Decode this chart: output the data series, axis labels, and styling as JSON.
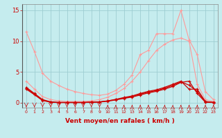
{
  "xlabel": "Vent moyen/en rafales ( km/h )",
  "xlim": [
    -0.5,
    23.5
  ],
  "ylim": [
    -0.8,
    16
  ],
  "yticks": [
    0,
    5,
    10,
    15
  ],
  "xticks": [
    0,
    1,
    2,
    3,
    4,
    5,
    6,
    7,
    8,
    9,
    10,
    11,
    12,
    13,
    14,
    15,
    16,
    17,
    18,
    19,
    20,
    21,
    22,
    23
  ],
  "bg_color": "#c5ecee",
  "grid_color": "#9ecdd2",
  "light_pink": "#ff9999",
  "dark_red": "#cc0000",
  "line_A_x": [
    0,
    1,
    2,
    3,
    4,
    5,
    6,
    7,
    8,
    9,
    10,
    11,
    12,
    13,
    14,
    15,
    16,
    17,
    18,
    19,
    20,
    21,
    22,
    23
  ],
  "line_A_y": [
    11.5,
    8.3,
    4.8,
    3.5,
    2.8,
    2.2,
    1.8,
    1.5,
    1.3,
    1.2,
    1.4,
    2.0,
    3.0,
    4.5,
    7.8,
    8.5,
    11.2,
    11.2,
    11.2,
    15.0,
    10.2,
    7.8,
    1.8,
    0.5
  ],
  "line_B_x": [
    0,
    1,
    2,
    3,
    4,
    5,
    6,
    7,
    8,
    9,
    10,
    11,
    12,
    13,
    14,
    15,
    16,
    17,
    18,
    19,
    20,
    21,
    22,
    23
  ],
  "line_B_y": [
    3.5,
    2.2,
    1.0,
    0.5,
    0.3,
    0.2,
    0.2,
    0.2,
    0.3,
    0.5,
    0.9,
    1.5,
    2.3,
    3.5,
    5.0,
    6.8,
    8.5,
    9.5,
    10.2,
    10.5,
    10.0,
    3.0,
    0.5,
    0.2
  ],
  "line_C_x": [
    0,
    1,
    2,
    3,
    4,
    5,
    6,
    7,
    8,
    9,
    10,
    11,
    12,
    13,
    14,
    15,
    16,
    17,
    18,
    19,
    20,
    21,
    22,
    23
  ],
  "line_C_y": [
    2.5,
    1.5,
    0.5,
    0.15,
    0.05,
    0.05,
    0.05,
    0.05,
    0.1,
    0.15,
    0.3,
    0.55,
    0.85,
    1.1,
    1.5,
    1.85,
    2.1,
    2.5,
    3.0,
    3.5,
    2.2,
    2.2,
    0.2,
    0.05
  ],
  "line_D_x": [
    0,
    1,
    2,
    3,
    4,
    5,
    6,
    7,
    8,
    9,
    10,
    11,
    12,
    13,
    14,
    15,
    16,
    17,
    18,
    19,
    20,
    21,
    22,
    23
  ],
  "line_D_y": [
    2.2,
    1.3,
    0.35,
    0.08,
    0.03,
    0.03,
    0.03,
    0.03,
    0.07,
    0.1,
    0.25,
    0.45,
    0.7,
    0.92,
    1.25,
    1.6,
    1.85,
    2.2,
    2.65,
    3.3,
    3.5,
    1.5,
    0.08,
    0.03
  ],
  "line_E_x": [
    0,
    1,
    2,
    3,
    4,
    5,
    6,
    7,
    8,
    9,
    10,
    11,
    12,
    13,
    14,
    15,
    16,
    17,
    18,
    19,
    20,
    21,
    22,
    23
  ],
  "line_E_y": [
    2.35,
    1.4,
    0.42,
    0.1,
    0.04,
    0.04,
    0.04,
    0.04,
    0.08,
    0.12,
    0.28,
    0.5,
    0.78,
    1.0,
    1.38,
    1.72,
    1.97,
    2.35,
    2.82,
    3.4,
    2.85,
    1.85,
    0.14,
    0.04
  ],
  "arrows_down": [
    0,
    1,
    2,
    3,
    4,
    5,
    6,
    7,
    8,
    9
  ],
  "arrows_mixed": [
    10,
    11,
    12,
    13,
    14,
    15,
    16,
    17,
    18,
    19,
    20,
    21,
    22,
    23
  ]
}
